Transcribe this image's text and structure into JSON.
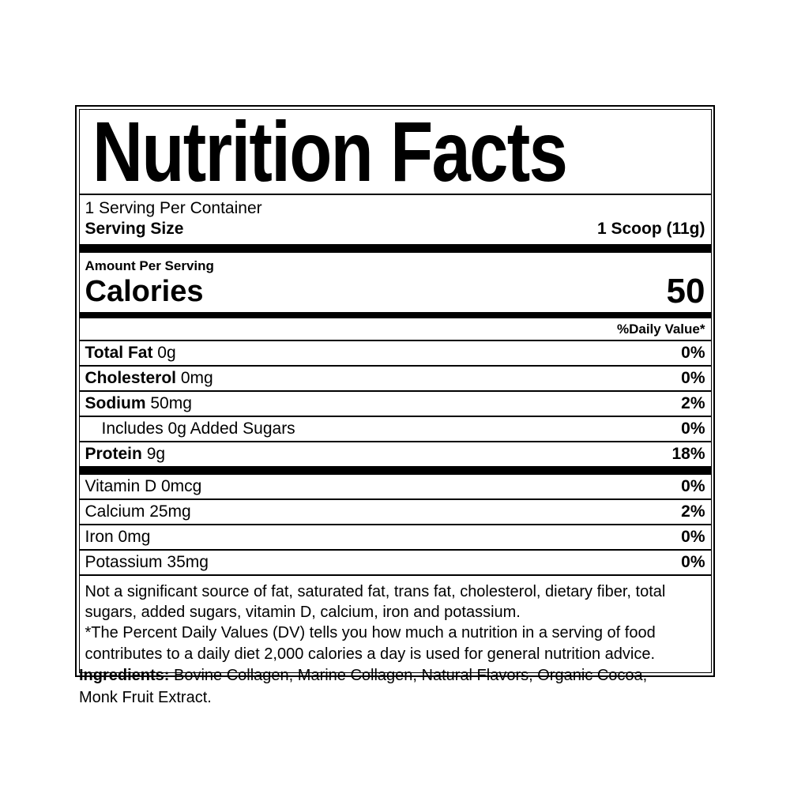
{
  "nutrition_label": {
    "title": "Nutrition Facts",
    "servings_per_container": "1 Serving Per Container",
    "serving_size": {
      "label": "Serving Size",
      "value": "1 Scoop (11g)"
    },
    "amount_per_serving": "Amount Per Serving",
    "calories": {
      "label": "Calories",
      "value": "50"
    },
    "daily_value_header": "%Daily Value*",
    "nutrients": [
      {
        "name": "Total Fat",
        "amount": "0g",
        "daily_value": "0%"
      },
      {
        "name": "Cholesterol",
        "amount": "0mg",
        "daily_value": "0%"
      },
      {
        "name": "Sodium",
        "amount": "50mg",
        "daily_value": "2%"
      },
      {
        "name": "Includes 0g Added Sugars",
        "amount": "",
        "daily_value": "0%"
      },
      {
        "name": "Protein",
        "amount": "9g",
        "daily_value": "18%"
      }
    ],
    "micronutrients": [
      {
        "name": "Vitamin D",
        "amount": "0mcg",
        "daily_value": "0%"
      },
      {
        "name": "Calcium",
        "amount": "25mg",
        "daily_value": "2%"
      },
      {
        "name": "Iron",
        "amount": "0mg",
        "daily_value": "0%"
      },
      {
        "name": "Potassium",
        "amount": "35mg",
        "daily_value": "0%"
      }
    ],
    "footnotes": {
      "not_significant": "Not a significant source of fat, saturated fat, trans fat, cholesterol, dietary fiber, total sugars, added sugars, vitamin D, calcium, iron and potassium.",
      "percent_daily_value": "*The Percent Daily Values (DV) tells you how much a nutrition in a serving of food contributes to a daily diet 2,000 calories a day is used for general nutrition advice."
    }
  },
  "ingredients": {
    "label": "Ingredients:",
    "list": "Bovine Collagen, Marine Collagen, Natural Flavors, Organic Cocoa, Monk Fruit Extract."
  },
  "colors": {
    "text": "#000000",
    "background": "#ffffff",
    "border": "#000000"
  }
}
